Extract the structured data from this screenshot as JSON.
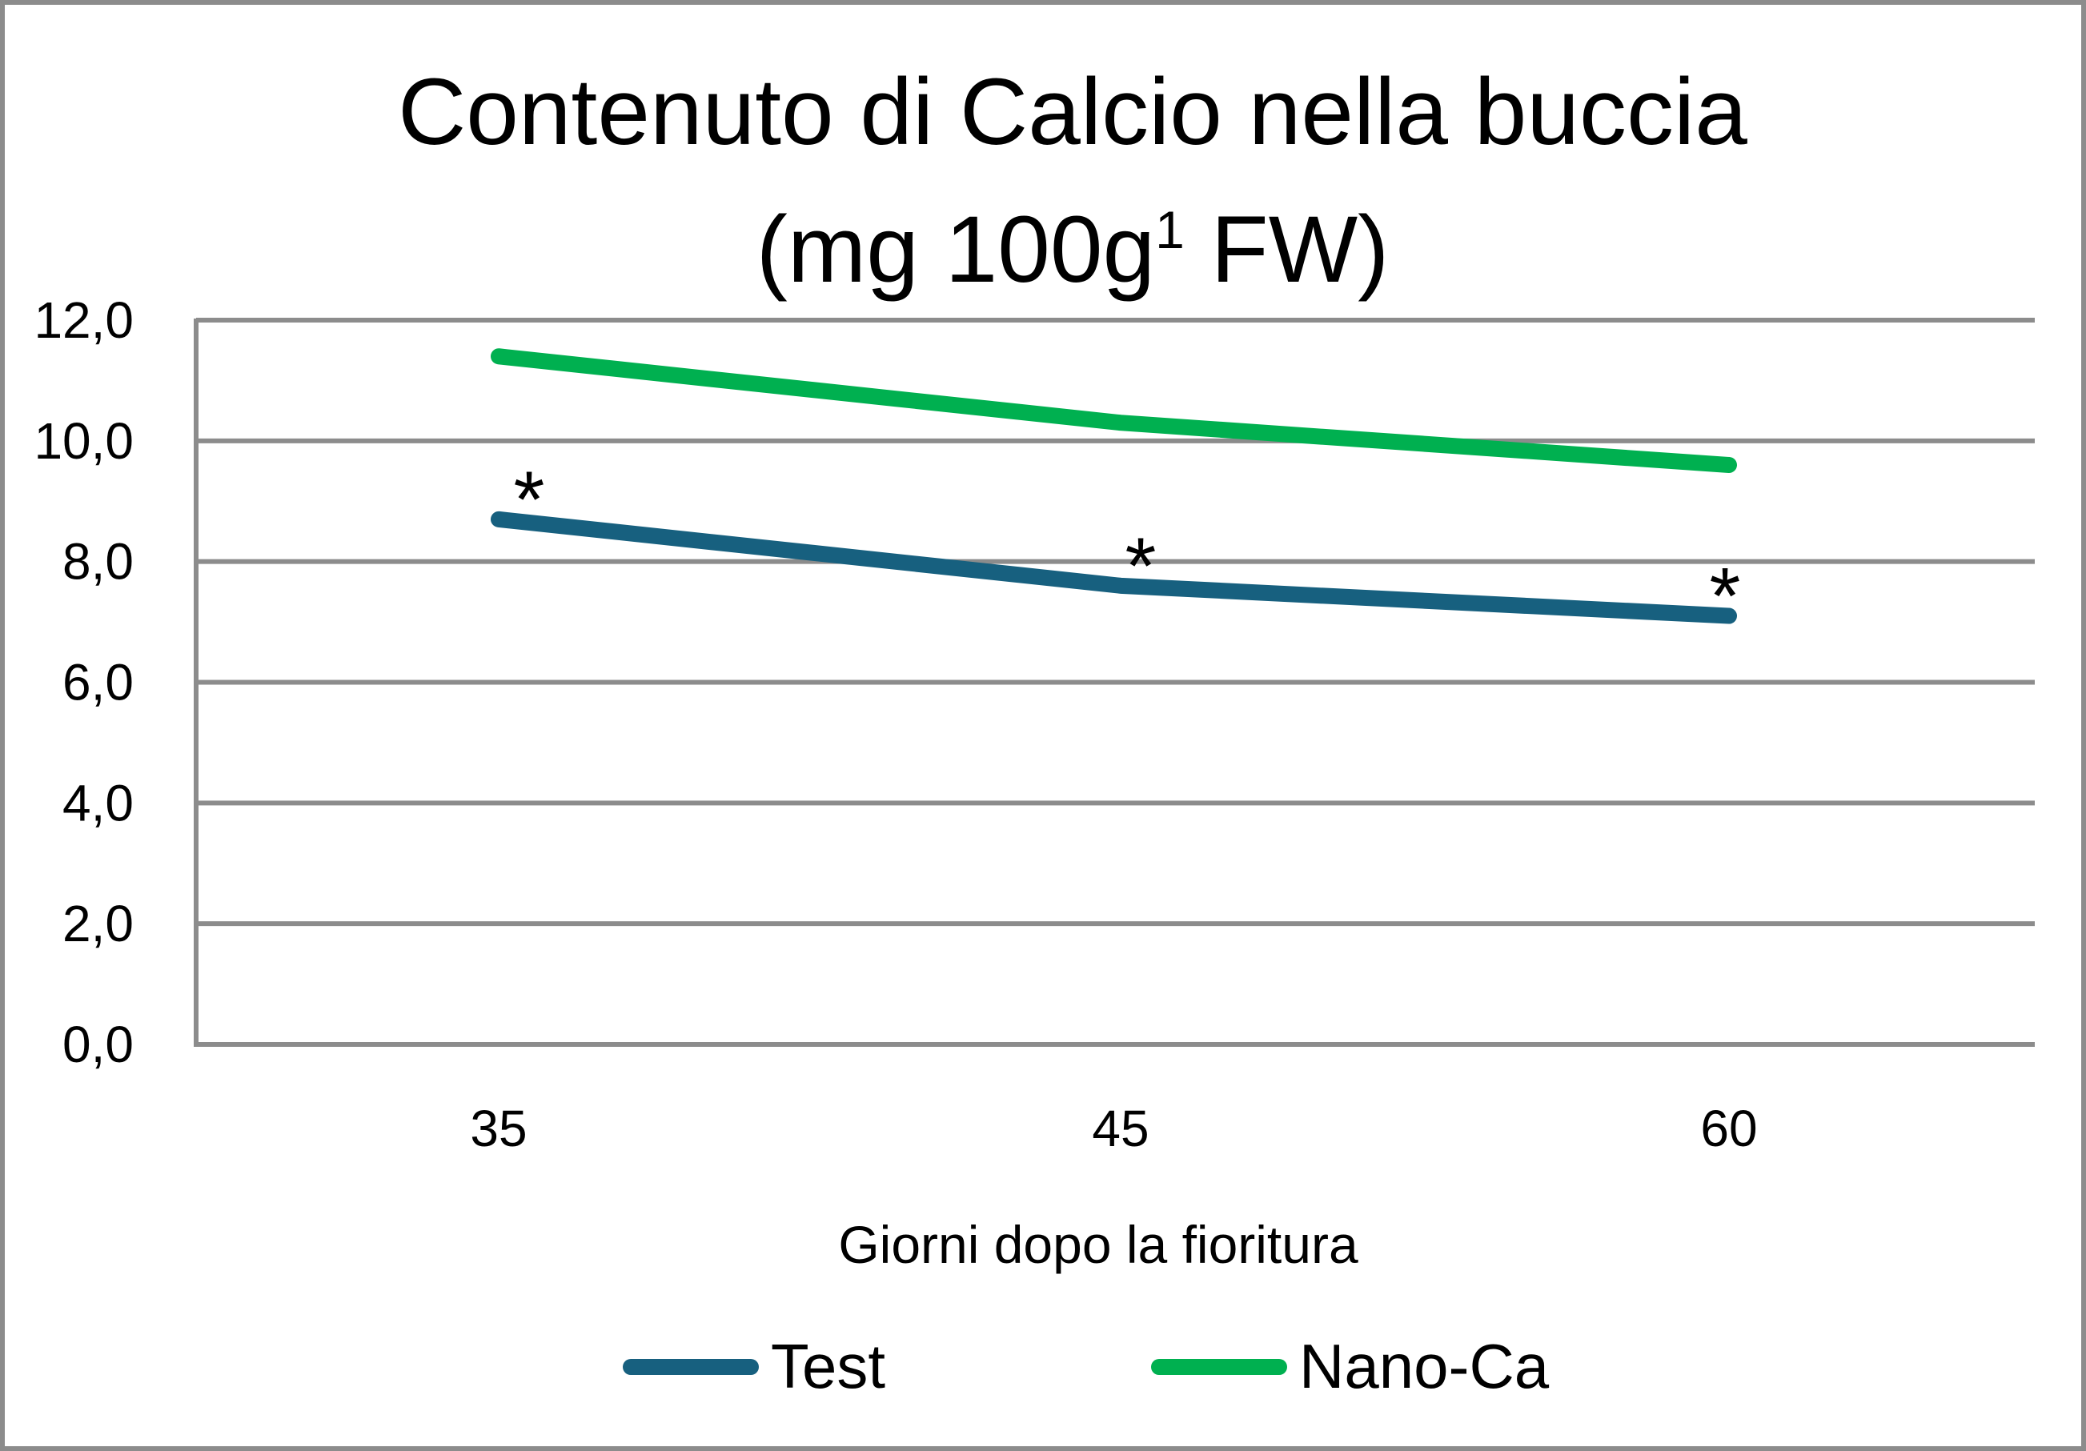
{
  "chart_data": {
    "type": "line",
    "title_line1": "Contenuto di Calcio nella buccia",
    "title_line2_prefix": "(mg 100g",
    "title_line2_sup": "1",
    "title_line2_suffix": " FW)",
    "xlabel": "Giorni dopo la fioritura",
    "ylabel": "",
    "categories": [
      "35",
      "45",
      "60"
    ],
    "ylim": [
      0,
      12
    ],
    "yticks": [
      "0,0",
      "2,0",
      "4,0",
      "6,0",
      "8,0",
      "10,0",
      "12,0"
    ],
    "grid": true,
    "legend_position": "bottom",
    "series": [
      {
        "name": "Test",
        "color": "#17607f",
        "values": [
          8.7,
          7.6,
          7.1
        ]
      },
      {
        "name": "Nano-Ca",
        "color": "#00b050",
        "values": [
          11.4,
          10.3,
          9.6
        ]
      }
    ],
    "annotations": [
      {
        "text": "*",
        "category": "35",
        "value": 9.5
      },
      {
        "text": "*",
        "category": "45",
        "value": 8.4
      },
      {
        "text": "*",
        "category": "60",
        "value": 7.9
      }
    ],
    "colors": {
      "grid": "#8c8c8c",
      "frame": "#8c8c8c",
      "background": "#ffffff"
    }
  }
}
